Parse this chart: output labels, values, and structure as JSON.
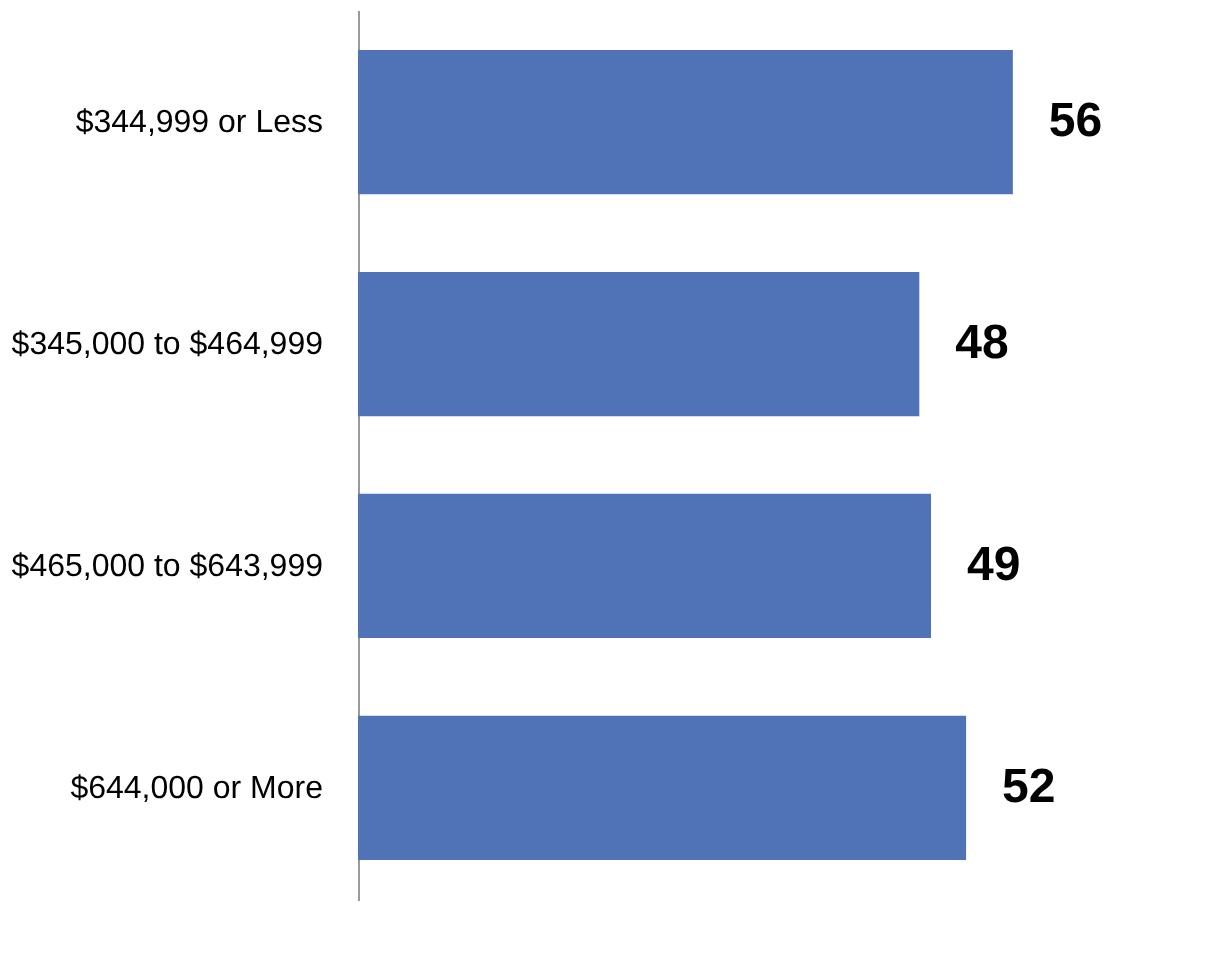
{
  "chart_data": {
    "type": "bar",
    "orientation": "horizontal",
    "categories": [
      "$344,999 or Less",
      "$345,000 to $464,999",
      "$465,000 to $643,999",
      "$644,000 or More"
    ],
    "values": [
      56,
      48,
      49,
      52
    ],
    "color": "#5073b8",
    "data_labels": true,
    "tick_labels": "y",
    "grid": false
  }
}
